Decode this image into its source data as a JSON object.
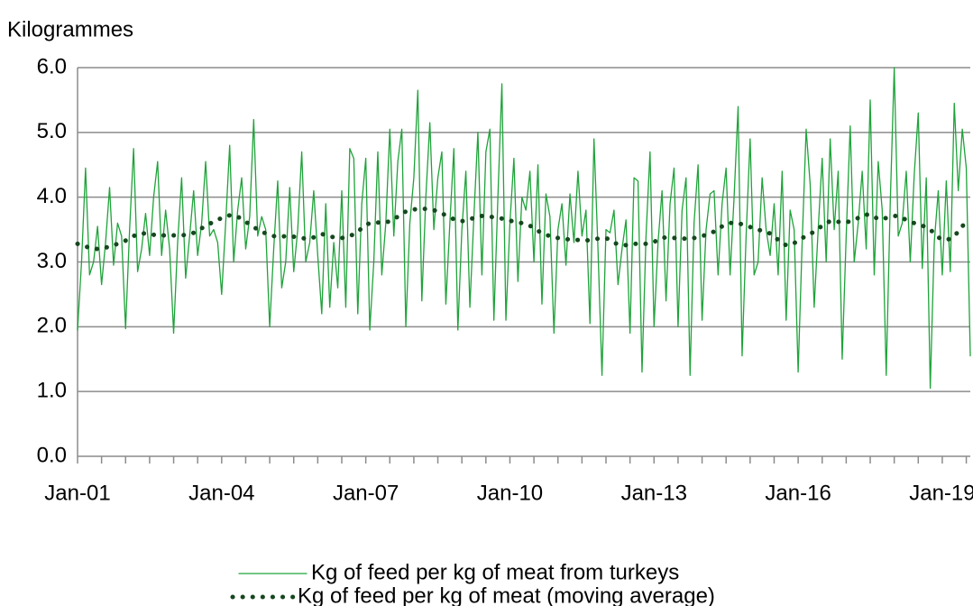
{
  "chart_data": {
    "type": "line",
    "y_label": "Kilogrammes",
    "categories": [
      "Jan-01",
      null,
      null,
      null,
      null,
      null,
      null,
      null,
      null,
      null,
      null,
      null,
      null,
      null,
      null,
      null,
      null,
      null,
      null,
      null,
      null,
      null,
      null,
      null,
      null,
      null,
      null,
      null,
      null,
      null,
      null,
      null,
      null,
      null,
      null,
      null,
      "Jan-04",
      null,
      null,
      null,
      null,
      null,
      null,
      null,
      null,
      null,
      null,
      null,
      null,
      null,
      null,
      null,
      null,
      null,
      null,
      null,
      null,
      null,
      null,
      null,
      null,
      null,
      null,
      null,
      null,
      null,
      null,
      null,
      null,
      null,
      null,
      null,
      "Jan-07",
      null,
      null,
      null,
      null,
      null,
      null,
      null,
      null,
      null,
      null,
      null,
      null,
      null,
      null,
      null,
      null,
      null,
      null,
      null,
      null,
      null,
      null,
      null,
      null,
      null,
      null,
      null,
      null,
      null,
      null,
      null,
      null,
      null,
      null,
      null,
      "Jan-10",
      null,
      null,
      null,
      null,
      null,
      null,
      null,
      null,
      null,
      null,
      null,
      null,
      null,
      null,
      null,
      null,
      null,
      null,
      null,
      null,
      null,
      null,
      null,
      null,
      null,
      null,
      null,
      null,
      null,
      null,
      null,
      null,
      null,
      null,
      null,
      "Jan-13",
      null,
      null,
      null,
      null,
      null,
      null,
      null,
      null,
      null,
      null,
      null,
      null,
      null,
      null,
      null,
      null,
      null,
      null,
      null,
      null,
      null,
      null,
      null,
      null,
      null,
      null,
      null,
      null,
      null,
      null,
      null,
      null,
      null,
      null,
      null,
      "Jan-16",
      null,
      null,
      null,
      null,
      null,
      null,
      null,
      null,
      null,
      null,
      null,
      null,
      null,
      null,
      null,
      null,
      null,
      null,
      null,
      null,
      null,
      null,
      null,
      null,
      null,
      null,
      null,
      null,
      null,
      null,
      null,
      null,
      null,
      null,
      null,
      "Jan-19",
      null,
      null,
      null,
      null,
      null,
      null,
      null
    ],
    "series": [
      {
        "name": "Kg of feed per kg of meat from turkeys",
        "color": "#1fa33a",
        "style": "solid",
        "values": [
          1.95,
          3.0,
          4.45,
          2.8,
          3.0,
          3.55,
          2.65,
          3.3,
          4.15,
          2.95,
          3.6,
          3.4,
          1.97,
          3.5,
          4.75,
          2.85,
          3.2,
          3.75,
          3.1,
          4.0,
          4.55,
          3.1,
          3.8,
          3.2,
          1.9,
          3.3,
          4.3,
          2.75,
          3.4,
          4.1,
          3.1,
          3.6,
          4.55,
          3.4,
          3.5,
          3.3,
          2.5,
          3.6,
          4.8,
          3.0,
          3.8,
          4.3,
          3.2,
          3.7,
          5.2,
          3.4,
          3.7,
          3.5,
          2.0,
          3.2,
          4.25,
          2.6,
          3.0,
          4.15,
          2.85,
          3.5,
          4.7,
          3.0,
          3.3,
          4.1,
          3.1,
          2.2,
          3.9,
          2.3,
          3.3,
          2.6,
          4.1,
          2.3,
          4.75,
          4.6,
          2.2,
          3.9,
          4.6,
          1.95,
          3.0,
          4.7,
          2.8,
          3.6,
          5.05,
          3.4,
          4.55,
          5.05,
          2.0,
          3.6,
          4.3,
          5.65,
          2.4,
          4.0,
          5.15,
          3.5,
          4.3,
          4.7,
          2.35,
          3.6,
          4.75,
          1.95,
          3.5,
          4.4,
          2.3,
          3.7,
          5.0,
          2.8,
          4.7,
          5.05,
          2.1,
          4.0,
          5.75,
          2.1,
          3.6,
          4.6,
          2.7,
          4.0,
          3.8,
          4.4,
          3.0,
          4.5,
          2.35,
          4.05,
          3.7,
          1.9,
          3.5,
          3.9,
          2.95,
          4.05,
          3.3,
          4.4,
          3.4,
          3.8,
          2.05,
          4.9,
          3.2,
          1.25,
          3.5,
          3.45,
          3.8,
          2.65,
          3.2,
          3.65,
          1.9,
          4.3,
          4.25,
          1.3,
          3.4,
          4.7,
          2.0,
          3.3,
          4.1,
          2.4,
          3.9,
          4.45,
          2.0,
          3.8,
          4.3,
          1.25,
          3.6,
          4.5,
          2.1,
          3.5,
          4.05,
          4.1,
          2.8,
          3.9,
          4.45,
          2.8,
          4.0,
          5.4,
          1.55,
          3.4,
          4.9,
          2.8,
          3.0,
          4.3,
          3.5,
          3.1,
          3.9,
          2.8,
          4.4,
          2.1,
          3.8,
          3.5,
          1.3,
          3.3,
          5.05,
          4.2,
          2.3,
          3.5,
          4.6,
          3.0,
          4.9,
          3.5,
          4.4,
          1.5,
          3.4,
          5.1,
          3.0,
          3.6,
          4.4,
          3.2,
          5.5,
          2.8,
          4.55,
          3.8,
          1.25,
          3.9,
          6.0,
          3.4,
          3.6,
          4.4,
          3.0,
          4.35,
          5.3,
          2.9,
          4.3,
          1.05,
          3.3,
          4.1,
          2.8,
          4.25,
          2.85,
          5.45,
          4.1,
          5.05,
          4.45,
          1.55
        ]
      },
      {
        "name": "Kg of feed per kg of meat (moving average)",
        "color": "#16471f",
        "style": "dotted",
        "values": [
          3.28,
          3.26,
          3.24,
          3.22,
          3.21,
          3.2,
          3.21,
          3.22,
          3.24,
          3.26,
          3.28,
          3.3,
          3.33,
          3.36,
          3.4,
          3.43,
          3.44,
          3.44,
          3.43,
          3.42,
          3.41,
          3.41,
          3.41,
          3.41,
          3.41,
          3.41,
          3.41,
          3.42,
          3.43,
          3.45,
          3.48,
          3.52,
          3.56,
          3.59,
          3.62,
          3.65,
          3.68,
          3.7,
          3.72,
          3.72,
          3.7,
          3.66,
          3.62,
          3.58,
          3.54,
          3.5,
          3.47,
          3.44,
          3.42,
          3.4,
          3.39,
          3.39,
          3.4,
          3.4,
          3.39,
          3.38,
          3.37,
          3.36,
          3.36,
          3.38,
          3.41,
          3.43,
          3.42,
          3.4,
          3.38,
          3.37,
          3.37,
          3.38,
          3.4,
          3.43,
          3.47,
          3.52,
          3.57,
          3.6,
          3.61,
          3.61,
          3.6,
          3.61,
          3.63,
          3.66,
          3.7,
          3.74,
          3.78,
          3.8,
          3.81,
          3.82,
          3.82,
          3.82,
          3.81,
          3.8,
          3.78,
          3.75,
          3.72,
          3.69,
          3.66,
          3.64,
          3.63,
          3.64,
          3.66,
          3.68,
          3.7,
          3.71,
          3.71,
          3.7,
          3.69,
          3.68,
          3.67,
          3.66,
          3.64,
          3.62,
          3.61,
          3.6,
          3.59,
          3.56,
          3.52,
          3.48,
          3.45,
          3.42,
          3.4,
          3.38,
          3.37,
          3.36,
          3.35,
          3.35,
          3.34,
          3.34,
          3.33,
          3.33,
          3.34,
          3.35,
          3.36,
          3.37,
          3.37,
          3.34,
          3.3,
          3.27,
          3.26,
          3.26,
          3.27,
          3.28,
          3.28,
          3.28,
          3.28,
          3.29,
          3.31,
          3.34,
          3.37,
          3.38,
          3.38,
          3.37,
          3.37,
          3.36,
          3.36,
          3.36,
          3.37,
          3.38,
          3.4,
          3.42,
          3.44,
          3.47,
          3.51,
          3.55,
          3.58,
          3.6,
          3.61,
          3.6,
          3.58,
          3.56,
          3.54,
          3.52,
          3.5,
          3.48,
          3.46,
          3.44,
          3.4,
          3.34,
          3.29,
          3.26,
          3.26,
          3.29,
          3.33,
          3.37,
          3.4,
          3.43,
          3.47,
          3.51,
          3.56,
          3.6,
          3.63,
          3.64,
          3.62,
          3.61,
          3.61,
          3.63,
          3.65,
          3.68,
          3.71,
          3.73,
          3.73,
          3.7,
          3.66,
          3.66,
          3.68,
          3.7,
          3.71,
          3.71,
          3.68,
          3.65,
          3.62,
          3.6,
          3.58,
          3.56,
          3.54,
          3.5,
          3.44,
          3.38,
          3.35,
          3.34,
          3.36,
          3.4,
          3.47,
          3.55,
          3.62,
          null
        ]
      }
    ],
    "ylim": [
      0,
      6
    ],
    "yticks": [
      {
        "value": 0,
        "label": "0.0"
      },
      {
        "value": 1,
        "label": "1.0"
      },
      {
        "value": 2,
        "label": "2.0"
      },
      {
        "value": 3,
        "label": "3.0"
      },
      {
        "value": 4,
        "label": "4.0"
      },
      {
        "value": 5,
        "label": "5.0"
      },
      {
        "value": 6,
        "label": "6.0"
      }
    ],
    "grid": true,
    "legend": "bottom"
  }
}
